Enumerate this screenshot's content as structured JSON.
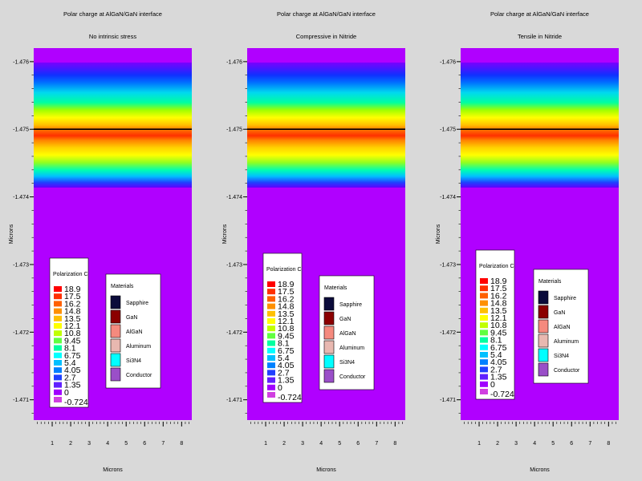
{
  "chart_data": [
    {
      "type": "heatmap",
      "title": "Polar charge at AlGaN/GaN interface",
      "subtitle": "No intrinsic stress",
      "xlabel": "Microns",
      "ylabel": "Microns",
      "x_ticks": [
        "1",
        "2",
        "3",
        "4",
        "5",
        "6",
        "7",
        "8"
      ],
      "y_ticks": [
        "-1.476",
        "-1.475",
        "-1.474",
        "-1.473",
        "-1.472",
        "-1.471"
      ],
      "interface_y": -1.475,
      "legend_title": "Polarization C",
      "legend_levels": [
        "18.9",
        "17.5",
        "16.2",
        "14.8",
        "13.5",
        "12.1",
        "10.8",
        "9.45",
        "8.1",
        "6.75",
        "5.4",
        "4.05",
        "2.7",
        "1.35",
        "0",
        "-0.724"
      ],
      "materials_title": "Materials",
      "materials": [
        {
          "name": "Sapphire",
          "color": "#0b0b3a"
        },
        {
          "name": "GaN",
          "color": "#8b0000"
        },
        {
          "name": "AlGaN",
          "color": "#f58a7e"
        },
        {
          "name": "Aluminum",
          "color": "#e8b8b0"
        },
        {
          "name": "Si3N4",
          "color": "#00ffff"
        },
        {
          "name": "Conductor",
          "color": "#9a4fc8"
        }
      ]
    },
    {
      "type": "heatmap",
      "title": "Polar charge at AlGaN/GaN interface",
      "subtitle": "Compressive in Nitride",
      "xlabel": "Microns",
      "ylabel": "Microns",
      "x_ticks": [
        "1",
        "2",
        "3",
        "4",
        "5",
        "6",
        "7",
        "8"
      ],
      "y_ticks": [
        "-1.476",
        "-1.475",
        "-1.474",
        "-1.473",
        "-1.472",
        "-1.471"
      ],
      "interface_y": -1.475,
      "legend_title": "Polarization C",
      "legend_levels": [
        "18.9",
        "17.5",
        "16.2",
        "14.8",
        "13.5",
        "12.1",
        "10.8",
        "9.45",
        "8.1",
        "6.75",
        "5.4",
        "4.05",
        "2.7",
        "1.35",
        "0",
        "-0.724"
      ],
      "materials_title": "Materials",
      "materials": [
        {
          "name": "Sapphire",
          "color": "#0b0b3a"
        },
        {
          "name": "GaN",
          "color": "#8b0000"
        },
        {
          "name": "AlGaN",
          "color": "#f58a7e"
        },
        {
          "name": "Aluminum",
          "color": "#e8b8b0"
        },
        {
          "name": "Si3N4",
          "color": "#00ffff"
        },
        {
          "name": "Conductor",
          "color": "#9a4fc8"
        }
      ]
    },
    {
      "type": "heatmap",
      "title": "Polar charge at AlGaN/GaN interface",
      "subtitle": "Tensile in Nitride",
      "xlabel": "Microns",
      "ylabel": "Microns",
      "x_ticks": [
        "1",
        "2",
        "3",
        "4",
        "5",
        "6",
        "7",
        "8"
      ],
      "y_ticks": [
        "-1.476",
        "-1.475",
        "-1.474",
        "-1.473",
        "-1.472",
        "-1.471"
      ],
      "interface_y": -1.475,
      "legend_title": "Polarization C",
      "legend_levels": [
        "18.9",
        "17.5",
        "16.2",
        "14.8",
        "13.5",
        "12.1",
        "10.8",
        "9.45",
        "8.1",
        "6.75",
        "5.4",
        "4.05",
        "2.7",
        "1.35",
        "0",
        "-0.724"
      ],
      "materials_title": "Materials",
      "materials": [
        {
          "name": "Sapphire",
          "color": "#0b0b3a"
        },
        {
          "name": "GaN",
          "color": "#8b0000"
        },
        {
          "name": "AlGaN",
          "color": "#f58a7e"
        },
        {
          "name": "Aluminum",
          "color": "#e8b8b0"
        },
        {
          "name": "Si3N4",
          "color": "#00ffff"
        },
        {
          "name": "Conductor",
          "color": "#9a4fc8"
        }
      ]
    }
  ],
  "colors": {
    "background": "#d9d9d9",
    "field_background": "#b000ff",
    "interface_line": "#000000"
  }
}
